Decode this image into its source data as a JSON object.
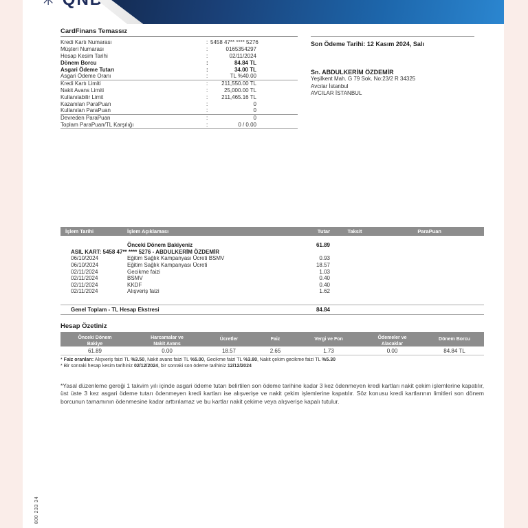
{
  "colors": {
    "banner_navy": "#13294f",
    "banner_blue": "#2b86d0",
    "banner_silver": "#c9c9c9",
    "table_header_gray": "#8d8d8d",
    "edge_band_pink": "#faede9",
    "logo_navy": "#1d2b5a"
  },
  "page": {
    "brand_logo_text": "✳ QNB",
    "product_title": "CardFinans Temassız",
    "vertical_code": "800 233 34"
  },
  "account_info": {
    "rows": [
      {
        "label": "Kredi Kartı Numarası",
        "value": "5458 47** **** 5276",
        "bold": false,
        "rule_below": false
      },
      {
        "label": "Müşteri Numarası",
        "value": "0165354297",
        "bold": false,
        "rule_below": false
      },
      {
        "label": "Hesap Kesim Tarihi",
        "value": "02/11/2024",
        "bold": false,
        "rule_below": false
      },
      {
        "label": "Dönem Borcu",
        "value": "84.84 TL",
        "bold": true,
        "rule_below": false
      },
      {
        "label": "Asgari Ödeme Tutarı",
        "value": "34.00 TL",
        "bold": true,
        "rule_below": false
      },
      {
        "label": "Asgari Ödeme Oranı",
        "value": "TL %40.00",
        "bold": false,
        "rule_below": true
      },
      {
        "label": "Kredi Kartı Limiti",
        "value": "211,550.00 TL",
        "bold": false,
        "rule_below": false
      },
      {
        "label": "Nakit Avans Limiti",
        "value": "25,000.00 TL",
        "bold": false,
        "rule_below": false
      },
      {
        "label": "Kullanılabilir Limit",
        "value": "211,465.16 TL",
        "bold": false,
        "rule_below": false
      },
      {
        "label": "Kazanılan ParaPuan",
        "value": "0",
        "bold": false,
        "rule_below": false
      },
      {
        "label": "Kullanılan ParaPuan",
        "value": "0",
        "bold": false,
        "rule_below": true
      },
      {
        "label": "Devreden ParaPuan",
        "value": "0",
        "bold": false,
        "rule_below": false
      },
      {
        "label": "Toplam ParaPuan/TL Karşılığı",
        "value": "0 / 0.00",
        "bold": false,
        "rule_below": true
      }
    ]
  },
  "payment": {
    "due_date_line": "Son Ödeme Tarihi: 12 Kasım 2024, Salı"
  },
  "customer": {
    "salutation_name": "Sn. ABDULKERİM ÖZDEMİR",
    "address_line1": "Yeşilkent Mah. G 79 Sok. No:23/2 R 34325",
    "address_line2": "Avcılar İstanbul",
    "address_line3": "AVCILAR İSTANBUL"
  },
  "transactions": {
    "headers": [
      "İşlem Tarihi",
      "İşlem Açıklaması",
      "Tutar",
      "Taksit",
      "ParaPuan"
    ],
    "previous_balance_row": {
      "description": "Önceki Dönem Bakiyeniz",
      "amount": "61.89"
    },
    "card_group_label": "ASIL KART: 5458 47** **** 5276 - ABDULKERİM ÖZDEMİR",
    "rows": [
      {
        "date": "06/10/2024",
        "description": "Eğitim Sağlık Kampanyası Ücreti BSMV",
        "amount": "0.93",
        "taksit": "",
        "parapuan": ""
      },
      {
        "date": "06/10/2024",
        "description": "Eğitim Sağlık Kampanyası Ücreti",
        "amount": "18.57",
        "taksit": "",
        "parapuan": ""
      },
      {
        "date": "02/11/2024",
        "description": "Gecikme faizi",
        "amount": "1.03",
        "taksit": "",
        "parapuan": ""
      },
      {
        "date": "02/11/2024",
        "description": "BSMV",
        "amount": "0.40",
        "taksit": "",
        "parapuan": ""
      },
      {
        "date": "02/11/2024",
        "description": "KKDF",
        "amount": "0.40",
        "taksit": "",
        "parapuan": ""
      },
      {
        "date": "02/11/2024",
        "description": "Alışveriş faizi",
        "amount": "1.62",
        "taksit": "",
        "parapuan": ""
      }
    ],
    "total_row": {
      "label": "Genel Toplam - TL Hesap Ekstresi",
      "amount": "84.84"
    }
  },
  "summary": {
    "title": "Hesap Özetiniz",
    "columns": [
      {
        "header": "Önceki Dönem\nBakiye",
        "value": "61.89"
      },
      {
        "header": "Harcamalar ve\nNakit Avans",
        "value": "0.00"
      },
      {
        "header": "Ücretler",
        "value": "18.57"
      },
      {
        "header": "Faiz",
        "value": "2.65"
      },
      {
        "header": "Vergi ve Fon",
        "value": "1.73"
      },
      {
        "header": "Ödemeler ve\nAlacaklar",
        "value": "0.00"
      },
      {
        "header": "Dönem Borcu",
        "value": "84.84 TL"
      }
    ]
  },
  "footnotes": [
    {
      "segments": [
        {
          "t": "* ",
          "b": false
        },
        {
          "t": "Faiz oranları:",
          "b": true
        },
        {
          "t": " Alışveriş faizi TL ",
          "b": false
        },
        {
          "t": "%3.50",
          "b": true
        },
        {
          "t": ", Nakit avans faizi TL ",
          "b": false
        },
        {
          "t": "%5.00",
          "b": true
        },
        {
          "t": ", Gecikme faizi TL ",
          "b": false
        },
        {
          "t": "%3.80",
          "b": true
        },
        {
          "t": ", Nakit çekim gecikme faizi TL ",
          "b": false
        },
        {
          "t": "%5.30",
          "b": true
        }
      ]
    },
    {
      "segments": [
        {
          "t": "* Bir sonraki hesap kesim tarihiniz ",
          "b": false
        },
        {
          "t": "02/12/2024",
          "b": true
        },
        {
          "t": ", bir sonraki son ödeme tarihiniz ",
          "b": false
        },
        {
          "t": "12/12/2024",
          "b": true
        }
      ]
    }
  ],
  "legal_text": "*Yasal düzenleme gereği 1 takvim yılı içinde asgari ödeme tutarı belirtilen son ödeme tarihine kadar 3 kez ödenmeyen kredi kartları nakit çekim işlemlerine kapatılır, üst üste 3 kez asgari ödeme tutarı ödenmeyen kredi kartları ise alışverişe ve nakit çekim işlemlerine kapatılır. Söz konusu kredi kartlarının limitleri son dönem borcunun tamamının ödenmesine kadar arttırılamaz ve bu kartlar nakit çekime veya alışverişe kapalı tutulur."
}
